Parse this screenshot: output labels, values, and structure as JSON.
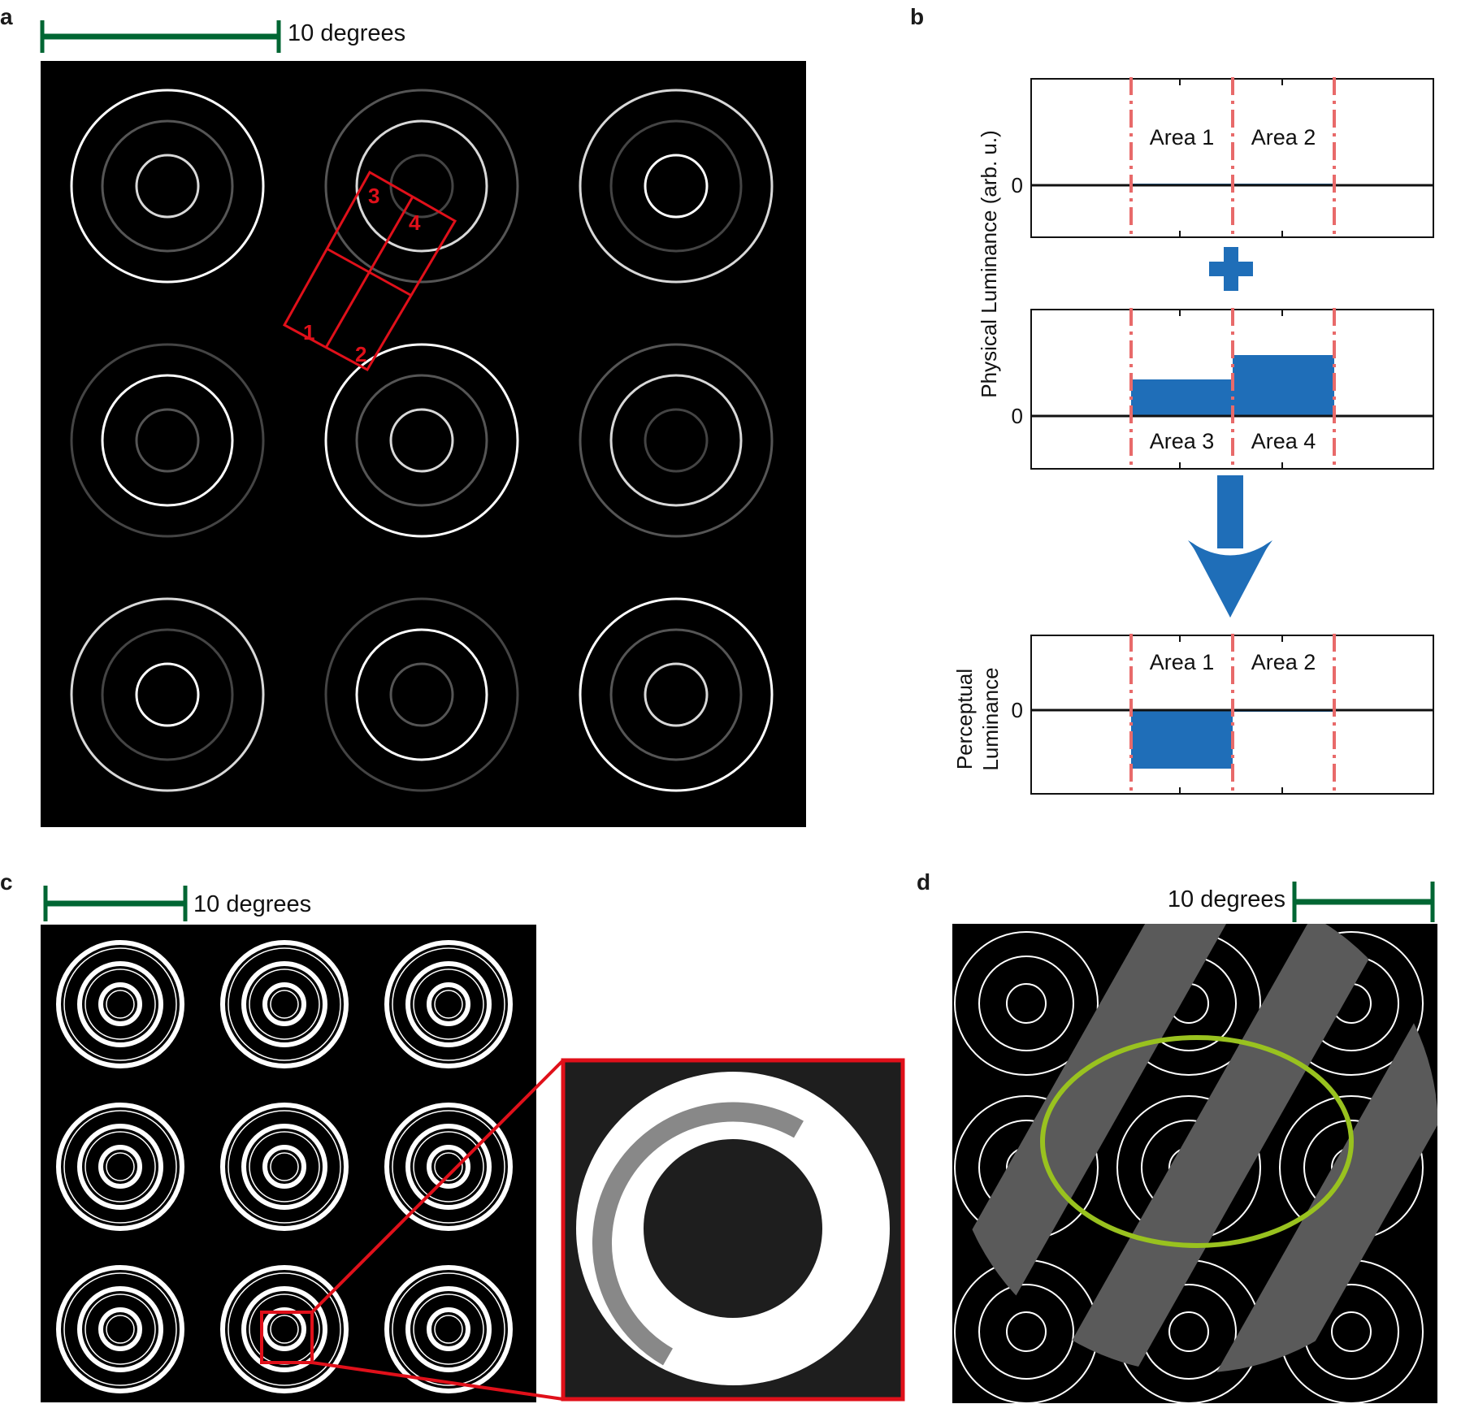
{
  "figure": {
    "panel_letters": [
      "a",
      "b",
      "c",
      "d"
    ],
    "scale_bar_label": "10 degrees",
    "colors": {
      "scale_bar": "#006633",
      "highlight_red": "#e0101a",
      "bar_blue": "#1f6eb8",
      "dashed_line": "#e86a6a",
      "ellipse_green": "#99c21f",
      "stripe_gray": "#5a5a5a"
    }
  },
  "panel_a": {
    "region_labels": [
      "1",
      "2",
      "3",
      "4"
    ]
  },
  "panel_b": {
    "ylabel_physical": "Physical Luminance (arb. u.)",
    "ylabel_perceptual_line1": "Perceptual",
    "ylabel_perceptual_line2": "Luminance",
    "zero_label": "0",
    "plus_icon": "plus-icon",
    "arrow_icon": "arrow-down-icon"
  },
  "chart_data": [
    {
      "type": "bar",
      "categories": [
        "Area 1",
        "Area 2"
      ],
      "values": [
        0.02,
        0.02
      ],
      "ylabel": "Physical Luminance (arb. u.)",
      "yticks": [
        "0"
      ]
    },
    {
      "type": "bar",
      "categories": [
        "Area 3",
        "Area 4"
      ],
      "values": [
        0.6,
        1.0
      ]
    },
    {
      "type": "bar",
      "categories": [
        "Area 1",
        "Area 2"
      ],
      "values": [
        -1.0,
        -0.02
      ],
      "ylabel": "Perceptual Luminance",
      "yticks": [
        "0"
      ]
    }
  ]
}
